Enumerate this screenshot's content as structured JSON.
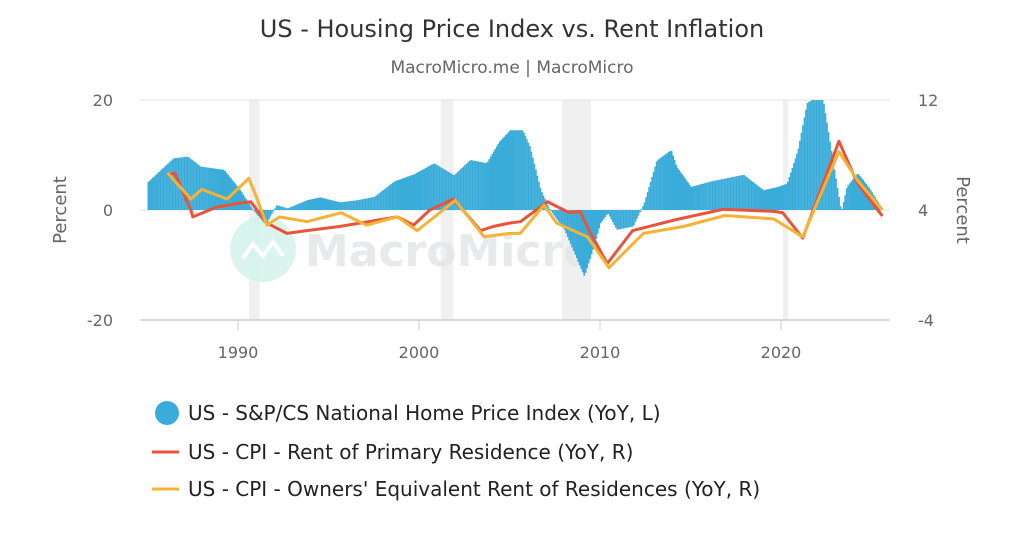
{
  "chart_data": {
    "type": "area+line",
    "title": "US - Housing Price Index vs. Rent Inflation",
    "subtitle": "MacroMicro.me | MacroMicro",
    "watermark": "MacroMicro",
    "xlim": [
      1985,
      2026
    ],
    "x_ticks": [
      "1990",
      "2000",
      "2010",
      "2020"
    ],
    "y_left": {
      "label": "Percent",
      "ylim": [
        -20,
        20
      ],
      "ticks": [
        "20",
        "0",
        "-20"
      ]
    },
    "y_right": {
      "label": "Percent",
      "ylim": [
        -4,
        12
      ],
      "ticks": [
        "12",
        "4",
        "-4"
      ]
    },
    "grid": "horizontal",
    "legend_position": "bottom-left",
    "recessions": [
      [
        1990.6,
        1991.2
      ],
      [
        2001.2,
        2001.9
      ],
      [
        2007.9,
        2009.5
      ],
      [
        2020.1,
        2020.4
      ]
    ],
    "series": [
      {
        "name": "US - S&P/CS National Home Price Index (YoY, L)",
        "axis": "left",
        "kind": "area",
        "color": "#3aacd9",
        "x": [
          1985.0,
          1986.4,
          1987.2,
          1987.9,
          1989.2,
          1990.1,
          1990.8,
          1991.5,
          1992.1,
          1992.7,
          1993.8,
          1994.5,
          1995.6,
          1996.6,
          1997.5,
          1998.6,
          1999.7,
          2000.8,
          2001.9,
          2002.8,
          2003.7,
          2004.4,
          2005.0,
          2005.7,
          2006.1,
          2006.7,
          2007.2,
          2008.0,
          2009.1,
          2009.6,
          2010.0,
          2010.4,
          2010.9,
          2011.8,
          2012.4,
          2013.1,
          2013.9,
          2014.2,
          2015.0,
          2016.1,
          2017.9,
          2019.0,
          2019.8,
          2020.3,
          2020.9,
          2021.4,
          2021.8,
          2022.3,
          2022.8,
          2023.3,
          2023.6,
          2024.2,
          2024.8,
          2025.5
        ],
        "values": [
          5.1,
          9.4,
          9.7,
          7.9,
          7.3,
          3.6,
          0,
          -2.7,
          0.9,
          0.3,
          1.8,
          2.3,
          1.4,
          1.8,
          2.4,
          5.2,
          6.5,
          8.5,
          6.3,
          9.1,
          8.5,
          12.4,
          14.5,
          14.5,
          11.5,
          3.6,
          0,
          -3.6,
          -12.1,
          -7,
          -2.4,
          -0.6,
          -3.6,
          -3,
          1.2,
          9,
          10.9,
          7.9,
          4.2,
          5.2,
          6.4,
          3.6,
          4.2,
          4.8,
          10.9,
          19.4,
          20.3,
          20,
          9.7,
          -0.3,
          4.2,
          6.7,
          4.2,
          0.6
        ]
      },
      {
        "name": "US - CPI - Rent of Primary Residence (YoY, R)",
        "axis": "right",
        "kind": "line",
        "color": "#e8533a",
        "x": [
          1986.1,
          1986.5,
          1987.4,
          1987.5,
          1988.8,
          1990.1,
          1990.7,
          1991.6,
          1992.7,
          1993.8,
          1995.6,
          1998.8,
          1999.7,
          2000.6,
          2001.9,
          2003.4,
          2004.1,
          2005.0,
          2005.6,
          2007.1,
          2008.3,
          2008.9,
          2009.4,
          2010.4,
          2011.8,
          2014.2,
          2016.8,
          2019.6,
          2020.1,
          2021.2,
          2023.2,
          2024.2,
          2025.6
        ],
        "values": [
          6.5,
          6.7,
          4.0,
          3.5,
          4.2,
          4.5,
          4.6,
          3.05,
          2.3,
          2.5,
          2.8,
          3.5,
          2.9,
          4.0,
          4.8,
          2.5,
          2.8,
          3.05,
          3.15,
          4.6,
          3.8,
          3.9,
          2.5,
          0.1,
          2.5,
          3.3,
          4.05,
          3.9,
          3.8,
          1.95,
          9.0,
          6.0,
          3.56
        ]
      },
      {
        "name": "US - CPI - Owners' Equivalent Rent of Residences (YoY, R)",
        "axis": "right",
        "kind": "line",
        "color": "#f5b335",
        "x": [
          1986.1,
          1987.4,
          1988.0,
          1989.4,
          1990.6,
          1991.0,
          1991.6,
          1992.3,
          1993.8,
          1995.7,
          1997.1,
          1998.8,
          1999.9,
          2002.0,
          2003.6,
          2005.0,
          2005.6,
          2006.9,
          2007.6,
          2009.3,
          2010.5,
          2012.4,
          2014.6,
          2016.9,
          2019.6,
          2021.2,
          2023.2,
          2024.2,
          2025.6
        ],
        "values": [
          6.7,
          4.8,
          5.5,
          4.8,
          6.3,
          5.0,
          2.9,
          3.5,
          3.15,
          3.8,
          2.9,
          3.5,
          2.5,
          4.7,
          2.05,
          2.3,
          2.3,
          4.35,
          3.05,
          2.05,
          -0.2,
          2.3,
          2.8,
          3.6,
          3.35,
          2.05,
          8.25,
          6.2,
          4.0
        ]
      }
    ]
  }
}
